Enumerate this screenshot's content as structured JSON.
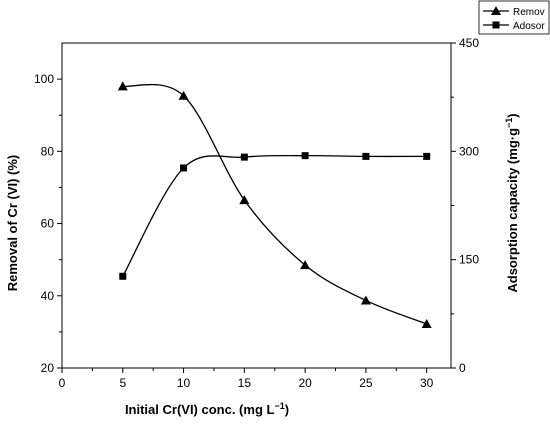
{
  "chart_data": {
    "type": "line",
    "x": [
      5,
      10,
      15,
      20,
      25,
      30
    ],
    "xlim": [
      0,
      32
    ],
    "xticks": [
      "0",
      "5",
      "10",
      "15",
      "20",
      "25",
      "30"
    ],
    "xlabel": "Initial Cr(VI) conc. (mg L",
    "xlabel_sup": "−1",
    "xlabel_end": ")",
    "ylabel_left": "Removal of Cr (VI) (%)",
    "ylim_left": [
      20,
      110
    ],
    "yticks_left": [
      "20",
      "40",
      "60",
      "80",
      "100"
    ],
    "ylabel_right": "Adsorption capacity (mg·g",
    "ylabel_right_sup": "−1",
    "ylabel_right_end": ")",
    "ylim_right": [
      0,
      450
    ],
    "yticks_right": [
      "0",
      "150",
      "300",
      "450"
    ],
    "series": [
      {
        "name": "Remov",
        "axis": "left",
        "marker": "triangle",
        "values": [
          98,
          95.4,
          66.5,
          48.5,
          38.7,
          32.2
        ]
      },
      {
        "name": "Adosor",
        "axis": "right",
        "marker": "square",
        "values": [
          127,
          277,
          292,
          294,
          293,
          293
        ]
      }
    ],
    "legend": "top-right",
    "grid": false
  }
}
